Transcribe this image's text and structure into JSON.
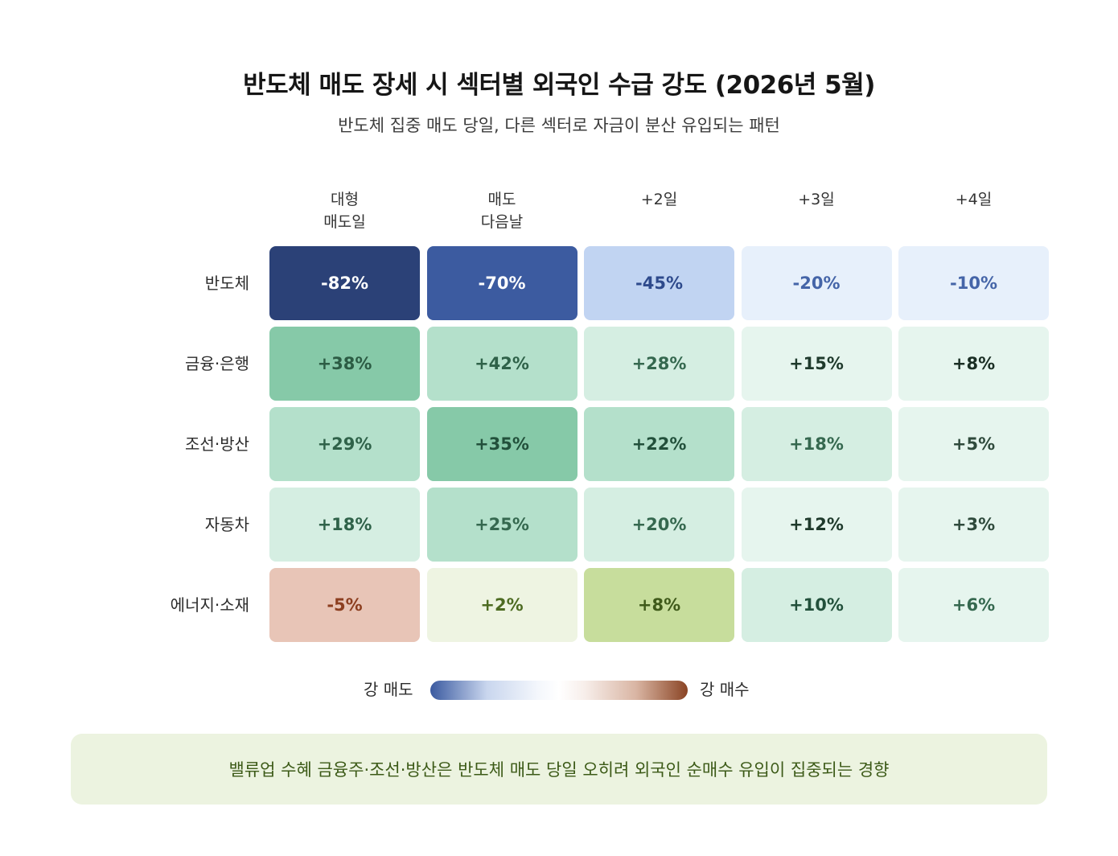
{
  "title": "반도체 매도 장세 시 섹터별 외국인 수급 강도 (2026년 5월)",
  "subtitle": "반도체 집중 매도 당일, 다른 섹터로 자금이 분산 유입되는 패턴",
  "chart_data": {
    "type": "heatmap",
    "columns": [
      "대형\n매도일",
      "매도\n다음날",
      "+2일",
      "+3일",
      "+4일"
    ],
    "rows": [
      {
        "label": "반도체",
        "values": [
          -82,
          -70,
          -45,
          -20,
          -10
        ],
        "texts": [
          "-82%",
          "-70%",
          "-45%",
          "-20%",
          "-10%"
        ]
      },
      {
        "label": "금융·은행",
        "values": [
          38,
          42,
          28,
          15,
          8
        ],
        "texts": [
          "+38%",
          "+42%",
          "+28%",
          "+15%",
          "+8%"
        ]
      },
      {
        "label": "조선·방산",
        "values": [
          29,
          35,
          22,
          18,
          5
        ],
        "texts": [
          "+29%",
          "+35%",
          "+22%",
          "+18%",
          "+5%"
        ]
      },
      {
        "label": "자동차",
        "values": [
          18,
          25,
          20,
          12,
          3
        ],
        "texts": [
          "+18%",
          "+25%",
          "+20%",
          "+12%",
          "+3%"
        ]
      },
      {
        "label": "에너지·소재",
        "values": [
          -5,
          2,
          8,
          10,
          6
        ],
        "texts": [
          "-5%",
          "+2%",
          "+8%",
          "+10%",
          "+6%"
        ]
      }
    ],
    "cell_styles": [
      [
        [
          "#2b4177",
          "#ffffff"
        ],
        [
          "#3c5ba0",
          "#ffffff"
        ],
        [
          "#c1d4f2",
          "#2e4a8c"
        ],
        [
          "#e7f0fb",
          "#4565a8"
        ],
        [
          "#e7f0fb",
          "#4565a8"
        ]
      ],
      [
        [
          "#86c9a8",
          "#2c5c44"
        ],
        [
          "#b4e0cb",
          "#2f6249"
        ],
        [
          "#d5eee2",
          "#35684f"
        ],
        [
          "#e6f5ee",
          "#1f3a2c"
        ],
        [
          "#e6f5ee",
          "#1a2e24"
        ]
      ],
      [
        [
          "#b4e0cb",
          "#2f6249"
        ],
        [
          "#86c9a8",
          "#22503b"
        ],
        [
          "#b4e0cb",
          "#22503b"
        ],
        [
          "#d5eee2",
          "#35684f"
        ],
        [
          "#e6f5ee",
          "#2f4a3c"
        ]
      ],
      [
        [
          "#d5eee2",
          "#2f6249"
        ],
        [
          "#b4e0cb",
          "#35684f"
        ],
        [
          "#d5eee2",
          "#35684f"
        ],
        [
          "#e6f5ee",
          "#1f3a2c"
        ],
        [
          "#e6f5ee",
          "#2f4a3c"
        ]
      ],
      [
        [
          "#e8c5b7",
          "#8c3e1f"
        ],
        [
          "#eef4e2",
          "#4d6b22"
        ],
        [
          "#c7dd9c",
          "#3f5a1a"
        ],
        [
          "#d5eee2",
          "#22503b"
        ],
        [
          "#e6f5ee",
          "#35684f"
        ]
      ]
    ]
  },
  "legend": {
    "left_label": "강 매도",
    "right_label": "강 매수",
    "gradient_start": "#3b5aa0",
    "gradient_end": "#8a4424"
  },
  "note": "밸류업 수혜 금융주·조선·방산은 반도체 매도 당일 오히려 외국인 순매수 유입이 집중되는 경향"
}
